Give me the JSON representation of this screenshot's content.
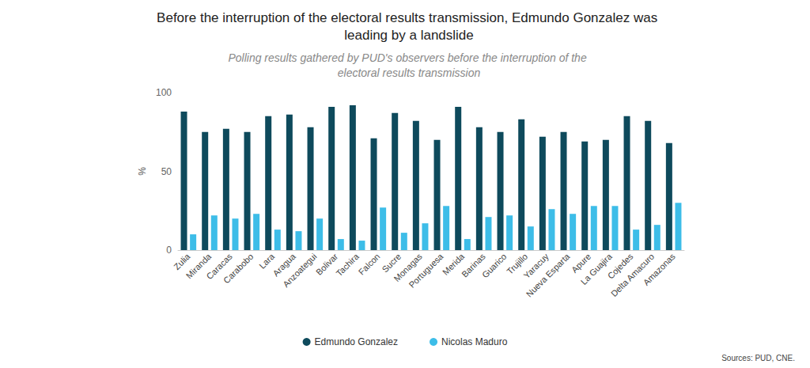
{
  "chart_data": {
    "type": "bar",
    "title": "Before the interruption of the electoral results transmission, Edmundo Gonzalez was leading by a landslide",
    "subtitle": "Polling results gathered by PUD's observers before the interruption of the electoral results transmission",
    "y_label": "%",
    "source": "Sources: PUD, CNE.",
    "categories": [
      "Zulia",
      "Miranda",
      "Caracas",
      "Carabobo",
      "Lara",
      "Aragua",
      "Anzoategui",
      "Bolivar",
      "Tachira",
      "Falcon",
      "Sucre",
      "Monagas",
      "Portuguesa",
      "Merida",
      "Barinas",
      "Guarico",
      "Trujillo",
      "Yaracuy",
      "Nueva Esparta",
      "Apure",
      "La Guajira",
      "Cojedes",
      "Delta Amacuro",
      "Amazonas"
    ],
    "series": [
      {
        "name": "Edmundo Gonzalez",
        "color": "#0e4a5c",
        "values": [
          88,
          75,
          77,
          75,
          85,
          86,
          78,
          91,
          92,
          71,
          87,
          82,
          70,
          91,
          78,
          75,
          83,
          72,
          75,
          69,
          70,
          85,
          82,
          68
        ]
      },
      {
        "name": "Nicolas Maduro",
        "color": "#3dbde8",
        "values": [
          10,
          22,
          20,
          23,
          13,
          12,
          20,
          7,
          6,
          27,
          11,
          17,
          28,
          7,
          21,
          22,
          15,
          26,
          23,
          28,
          28,
          13,
          16,
          30
        ]
      }
    ],
    "ylim": [
      0,
      100
    ],
    "yticks": [
      0,
      50,
      100
    ],
    "grid": false,
    "legend": "bottom"
  }
}
